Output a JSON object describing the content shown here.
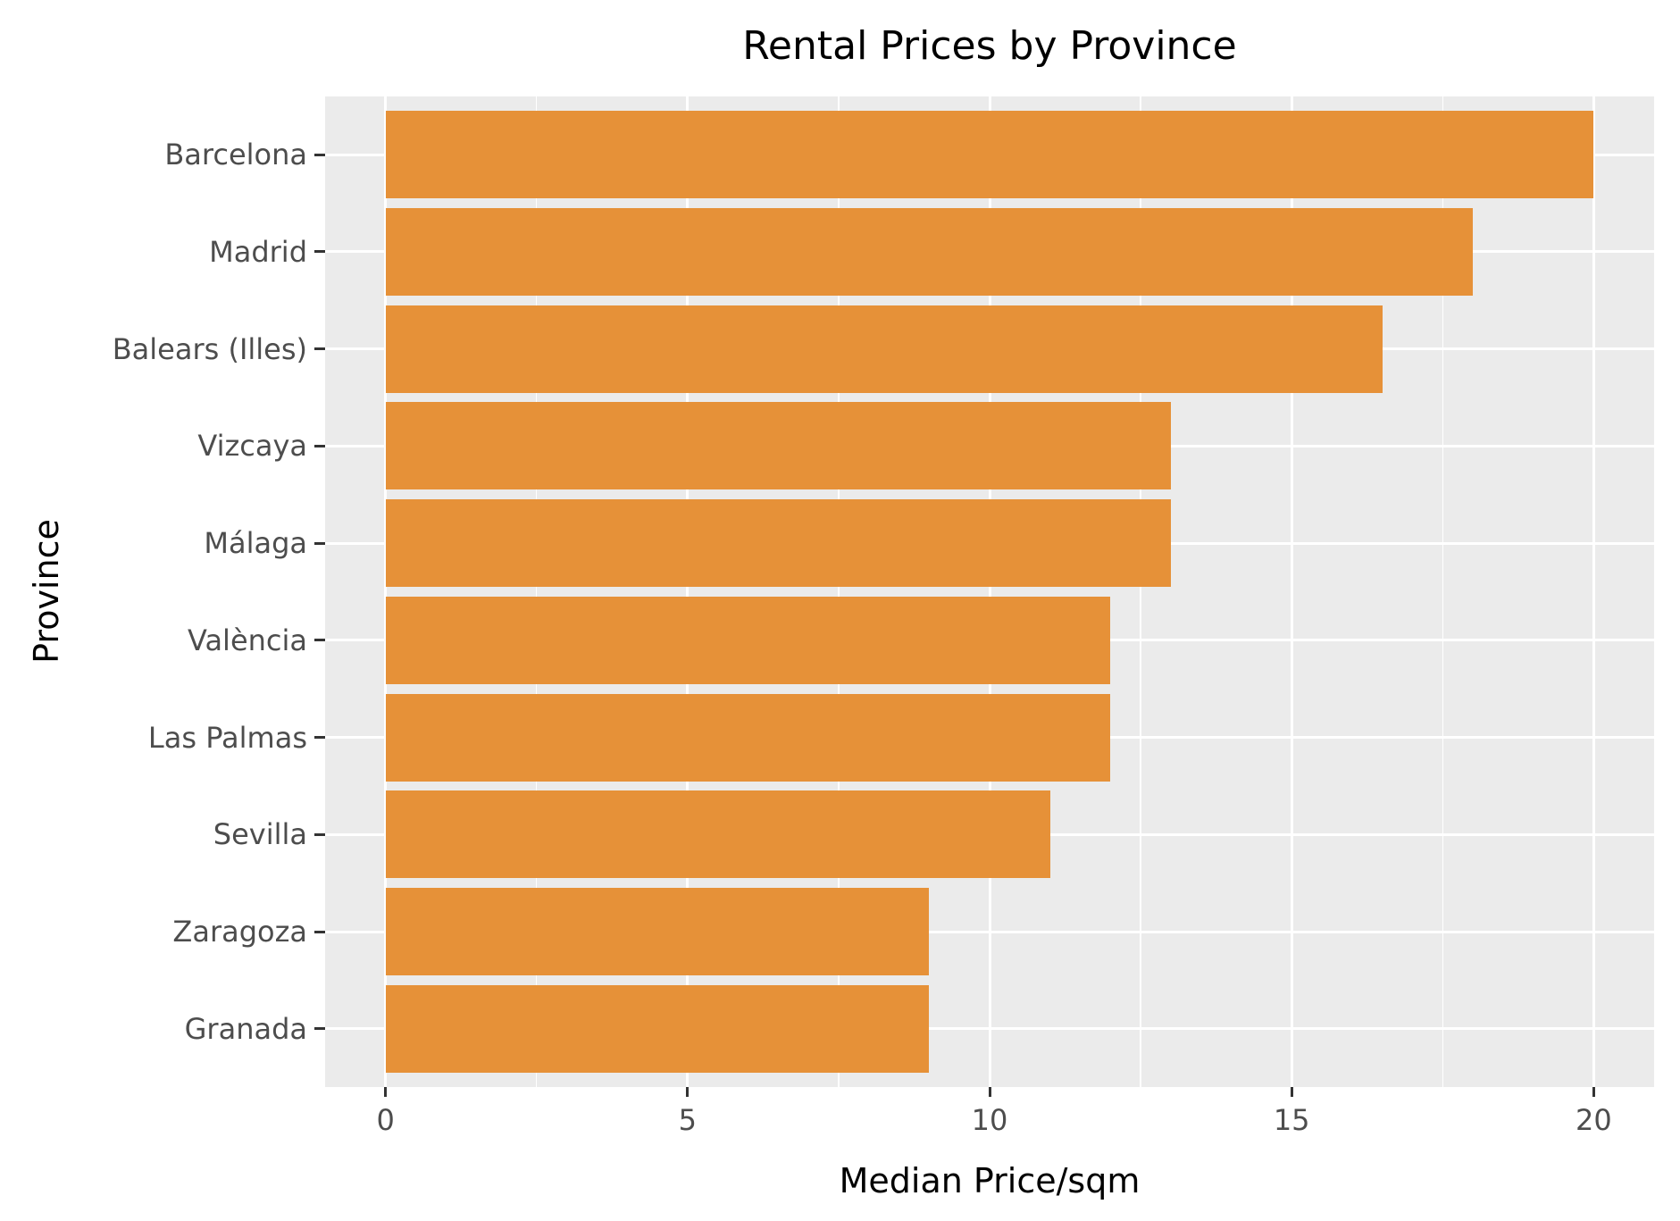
{
  "chart_data": {
    "type": "bar",
    "orientation": "horizontal",
    "title": "Rental Prices by Province",
    "xlabel": "Median Price/sqm",
    "ylabel": "Province",
    "categories": [
      "Barcelona",
      "Madrid",
      "Balears (Illes)",
      "Vizcaya",
      "Málaga",
      "València",
      "Las Palmas",
      "Sevilla",
      "Zaragoza",
      "Granada"
    ],
    "values": [
      20,
      18,
      16.5,
      13,
      13,
      12,
      12,
      11,
      9,
      9
    ],
    "xlim": [
      -1,
      21
    ],
    "x_ticks": [
      "0",
      "5",
      "10",
      "15",
      "20"
    ],
    "grid": true,
    "bar_color": "#e69138",
    "panel_background": "#ebebeb",
    "legend": null
  }
}
